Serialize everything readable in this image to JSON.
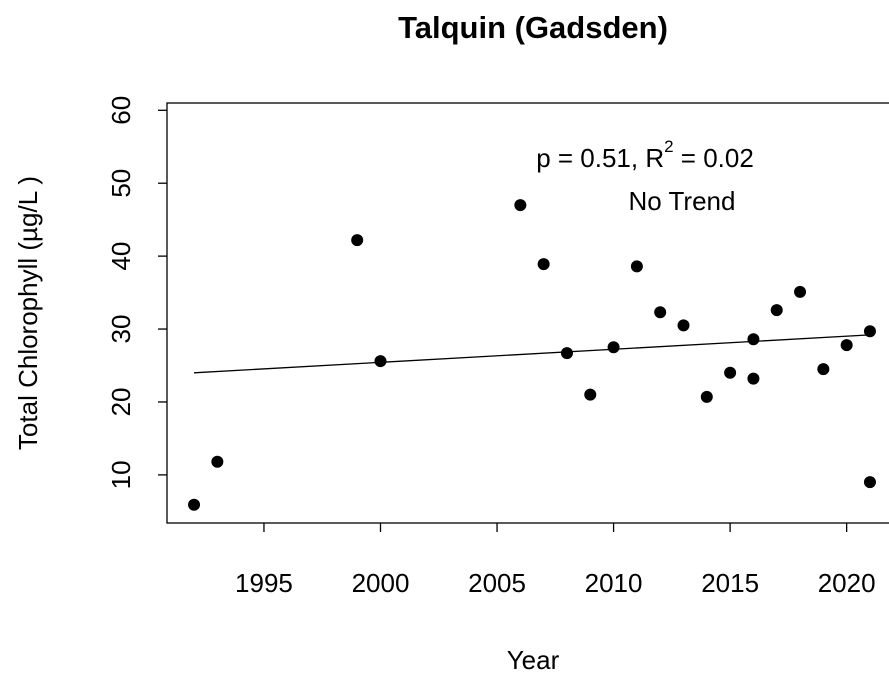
{
  "chart_data": {
    "type": "scatter",
    "title": "Talquin (Gadsden)",
    "x_label": "Year",
    "y_label": "Total Chlorophyll (µg/L )",
    "annotation": {
      "text": "p = 0.51, R",
      "sup": "2",
      "rest": " = 0.02",
      "line2": "No Trend"
    },
    "x": [
      1992,
      1993,
      1999,
      2000,
      2006,
      2007,
      2008,
      2009,
      2010,
      2011,
      2012,
      2013,
      2014,
      2015,
      2016,
      2016,
      2017,
      2018,
      2019,
      2020,
      2021,
      2021
    ],
    "values": [
      5.9,
      11.8,
      42.2,
      25.6,
      47,
      38.9,
      26.7,
      21.0,
      27.5,
      38.6,
      32.3,
      30.5,
      20.7,
      24.0,
      28.6,
      23.2,
      32.6,
      35.1,
      24.5,
      27.8,
      29.7,
      9.0
    ],
    "color": "#000000",
    "trend": {
      "x": [
        1992,
        2021
      ],
      "values": [
        24.0,
        29.2
      ]
    },
    "xlim": [
      1990.84,
      2022.16
    ],
    "xticks": [
      1995,
      2000,
      2005,
      2010,
      2015,
      2020
    ],
    "ylim": [
      3.4,
      61
    ],
    "yticks": [
      10,
      20,
      30,
      40,
      50,
      60
    ]
  }
}
